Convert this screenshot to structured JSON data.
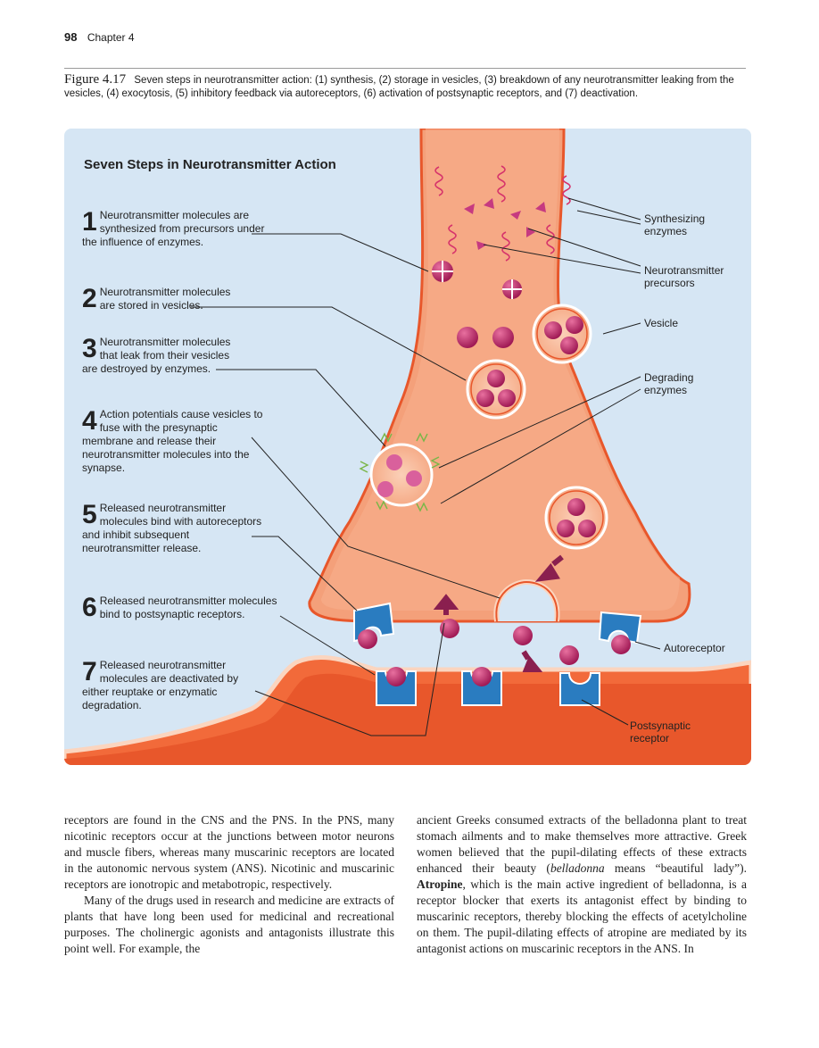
{
  "header": {
    "page_number": "98",
    "chapter": "Chapter 4"
  },
  "caption": {
    "figure_label": "Figure 4.17",
    "text": "Seven steps in neurotransmitter action: (1) synthesis, (2) storage in vesicles, (3) breakdown of any neurotransmitter leaking from the vesicles, (4) exocytosis, (5) inhibitory feedback via autoreceptors, (6) activation of postsynaptic receptors, and (7) deactivation."
  },
  "figure": {
    "title": "Seven Steps in Neurotransmitter Action",
    "steps": [
      {
        "n": "1",
        "text": "Neurotransmitter molecules are synthesized from precursors under the influence of enzymes."
      },
      {
        "n": "2",
        "text": "Neurotransmitter molecules are stored in vesicles."
      },
      {
        "n": "3",
        "text": "Neurotransmitter molecules that leak from their vesicles are destroyed by enzymes."
      },
      {
        "n": "4",
        "text": "Action potentials cause vesicles to fuse with the presynaptic membrane and release their neurotransmitter molecules into the synapse."
      },
      {
        "n": "5",
        "text": "Released neurotransmitter molecules bind with autoreceptors and inhibit subsequent neurotransmitter release."
      },
      {
        "n": "6",
        "text": "Released neurotransmitter molecules bind to postsynaptic receptors."
      },
      {
        "n": "7",
        "text": "Released neurotransmitter molecules are deactivated by either reuptake or enzymatic degradation."
      }
    ],
    "labels": {
      "synthesizing_enzymes": "Synthesizing enzymes",
      "precursors": "Neurotransmitter precursors",
      "vesicle": "Vesicle",
      "degrading_enzymes": "Degrading enzymes",
      "autoreceptor": "Autoreceptor",
      "postsynaptic_receptor": "Postsynaptic receptor"
    },
    "colors": {
      "background": "#d6e6f4",
      "neuron": "#f3a27c",
      "neuron_edge": "#e8572b",
      "molecule": "#b0205e",
      "receptor": "#2a7cc0",
      "enzyme": "#d6336b"
    }
  },
  "body": {
    "left_col": [
      "receptors are found in the CNS and the PNS. In the PNS, many nicotinic receptors occur at the junctions between motor neurons and muscle fibers, whereas many muscarinic receptors are located in the autonomic nervous system (ANS). Nicotinic and muscarinic receptors are ionotropic and metabotropic, respectively.",
      "Many of the drugs used in research and medicine are extracts of plants that have long been used for medicinal and recreational purposes. The cholinergic agonists and antagonists illustrate this point well. For example, the"
    ],
    "right_col": {
      "part1": "ancient Greeks consumed extracts of the belladonna plant to treat stomach ailments and to make themselves more attractive. Greek women believed that the pupil-dilating effects of these extracts enhanced their beauty (",
      "italic": "belladonna",
      "part2": " means “beautiful lady”). ",
      "bold": "Atropine",
      "part3": ", which is the main active ingredient of belladonna, is a receptor blocker that exerts its antagonist effect by binding to muscarinic receptors, thereby blocking the effects of acetylcholine on them. The pupil-dilating effects of atropine are mediated by its antagonist actions on muscarinic receptors in the ANS. In"
    }
  }
}
